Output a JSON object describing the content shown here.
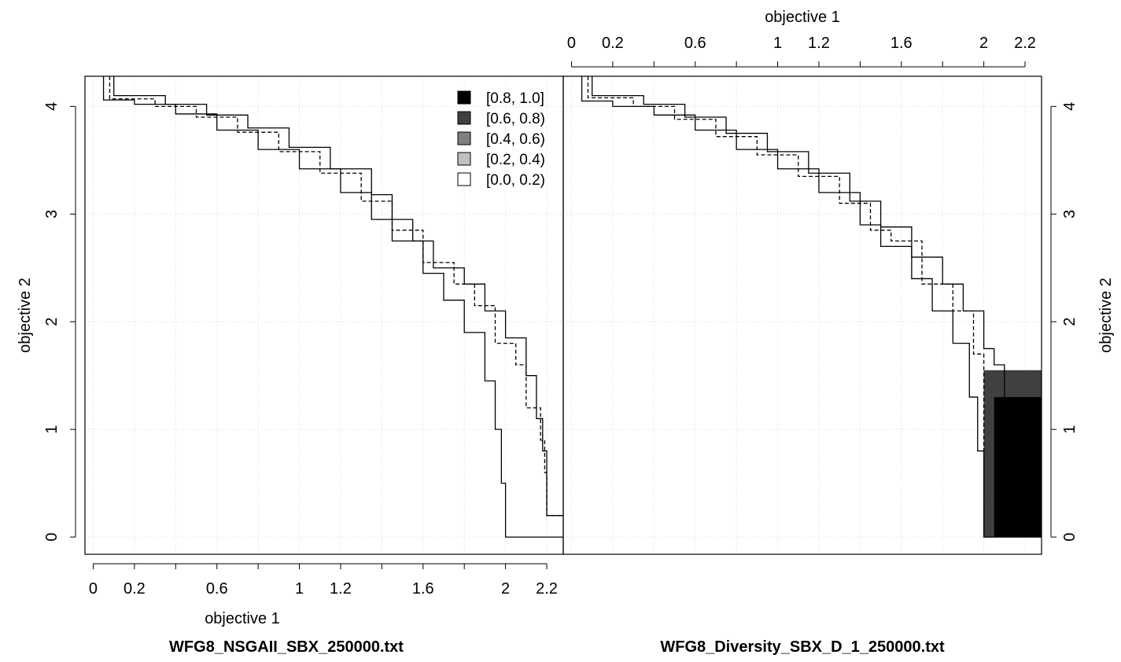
{
  "chart_data": [
    {
      "type": "line",
      "subtitle": "WFG8_NSGAII_SBX_250000.txt",
      "xlabel": "objective 1",
      "ylabel": "objective 2",
      "xlim": [
        -0.04,
        2.28
      ],
      "ylim": [
        -0.16,
        4.28
      ],
      "xticks": [
        0,
        0.2,
        0.4,
        0.6,
        0.8,
        1,
        1.2,
        1.4,
        1.6,
        1.8,
        2,
        2.2
      ],
      "xtick_labels": [
        "0",
        "0.2",
        "",
        "0.6",
        "",
        "1",
        "1.2",
        "",
        "1.6",
        "",
        "2",
        "2.2"
      ],
      "yticks": [
        0,
        1,
        2,
        3,
        4
      ],
      "ytick_labels": [
        "0",
        "1",
        "2",
        "3",
        "4"
      ],
      "grid": true,
      "legend": {
        "position": "top-right",
        "entries": [
          {
            "label": "[0.8, 1.0]",
            "color": "#000000"
          },
          {
            "label": "[0.6, 0.8)",
            "color": "#404040"
          },
          {
            "label": "[0.4, 0.6)",
            "color": "#808080"
          },
          {
            "label": "[0.2, 0.4)",
            "color": "#bfbfbf"
          },
          {
            "label": "[0.0, 0.2)",
            "color": "#ffffff"
          }
        ]
      },
      "series": [
        {
          "style": "solid",
          "points": [
            [
              0.05,
              4.28
            ],
            [
              0.05,
              4.06
            ],
            [
              0.2,
              4.02
            ],
            [
              0.4,
              3.93
            ],
            [
              0.6,
              3.78
            ],
            [
              0.8,
              3.6
            ],
            [
              1.0,
              3.42
            ],
            [
              1.2,
              3.2
            ],
            [
              1.35,
              2.95
            ],
            [
              1.45,
              2.75
            ],
            [
              1.6,
              2.45
            ],
            [
              1.7,
              2.2
            ],
            [
              1.8,
              1.9
            ],
            [
              1.9,
              1.45
            ],
            [
              1.95,
              1.0
            ],
            [
              1.98,
              0.5
            ],
            [
              2.0,
              0.1
            ],
            [
              2.0,
              0.0
            ],
            [
              2.28,
              0.0
            ]
          ]
        },
        {
          "style": "dashed",
          "points": [
            [
              0.08,
              4.28
            ],
            [
              0.08,
              4.07
            ],
            [
              0.3,
              4.0
            ],
            [
              0.5,
              3.9
            ],
            [
              0.7,
              3.76
            ],
            [
              0.9,
              3.58
            ],
            [
              1.1,
              3.38
            ],
            [
              1.3,
              3.12
            ],
            [
              1.45,
              2.85
            ],
            [
              1.6,
              2.55
            ],
            [
              1.75,
              2.35
            ],
            [
              1.85,
              2.15
            ],
            [
              1.95,
              1.8
            ],
            [
              2.05,
              1.6
            ],
            [
              2.1,
              1.2
            ],
            [
              2.17,
              0.9
            ],
            [
              2.19,
              0.6
            ],
            [
              2.2,
              0.2
            ],
            [
              2.28,
              0.2
            ]
          ]
        },
        {
          "style": "solid",
          "points": [
            [
              0.1,
              4.28
            ],
            [
              0.1,
              4.1
            ],
            [
              0.35,
              4.02
            ],
            [
              0.55,
              3.92
            ],
            [
              0.75,
              3.8
            ],
            [
              0.95,
              3.62
            ],
            [
              1.15,
              3.42
            ],
            [
              1.35,
              3.18
            ],
            [
              1.45,
              2.95
            ],
            [
              1.55,
              2.75
            ],
            [
              1.65,
              2.5
            ],
            [
              1.8,
              2.35
            ],
            [
              1.9,
              2.1
            ],
            [
              2.0,
              1.85
            ],
            [
              2.1,
              1.5
            ],
            [
              2.15,
              1.1
            ],
            [
              2.18,
              0.8
            ],
            [
              2.2,
              0.2
            ],
            [
              2.28,
              0.2
            ]
          ]
        }
      ]
    },
    {
      "type": "line",
      "subtitle": "WFG8_Diversity_SBX_D_1_250000.txt",
      "xlabel": "objective 1",
      "ylabel": "objective 2",
      "xlim": [
        -0.04,
        2.28
      ],
      "ylim": [
        -0.16,
        4.28
      ],
      "xticks": [
        0,
        0.2,
        0.4,
        0.6,
        0.8,
        1,
        1.2,
        1.4,
        1.6,
        1.8,
        2,
        2.2
      ],
      "xtick_labels": [
        "0",
        "0.2",
        "",
        "0.6",
        "",
        "1",
        "1.2",
        "",
        "1.6",
        "",
        "2",
        "2.2"
      ],
      "yticks": [
        0,
        1,
        2,
        3,
        4
      ],
      "ytick_labels": [
        "0",
        "1",
        "2",
        "3",
        "4"
      ],
      "grid": true,
      "series": [
        {
          "style": "solid",
          "points": [
            [
              0.05,
              4.28
            ],
            [
              0.05,
              4.05
            ],
            [
              0.2,
              4.0
            ],
            [
              0.4,
              3.92
            ],
            [
              0.6,
              3.78
            ],
            [
              0.8,
              3.6
            ],
            [
              1.0,
              3.42
            ],
            [
              1.2,
              3.2
            ],
            [
              1.4,
              2.9
            ],
            [
              1.5,
              2.7
            ],
            [
              1.65,
              2.4
            ],
            [
              1.75,
              2.1
            ],
            [
              1.85,
              1.8
            ],
            [
              1.93,
              1.3
            ],
            [
              1.97,
              0.8
            ],
            [
              2.0,
              0.3
            ],
            [
              2.0,
              0.0
            ],
            [
              2.28,
              0.0
            ]
          ]
        },
        {
          "style": "dashed",
          "points": [
            [
              0.08,
              4.28
            ],
            [
              0.08,
              4.08
            ],
            [
              0.3,
              4.0
            ],
            [
              0.5,
              3.88
            ],
            [
              0.7,
              3.72
            ],
            [
              0.9,
              3.55
            ],
            [
              1.1,
              3.35
            ],
            [
              1.3,
              3.1
            ],
            [
              1.45,
              2.85
            ],
            [
              1.55,
              2.75
            ],
            [
              1.7,
              2.35
            ],
            [
              1.85,
              2.1
            ],
            [
              1.95,
              1.7
            ],
            [
              2.0,
              1.5
            ],
            [
              2.0,
              0.0
            ]
          ]
        },
        {
          "style": "solid",
          "points": [
            [
              0.1,
              4.28
            ],
            [
              0.1,
              4.1
            ],
            [
              0.35,
              4.02
            ],
            [
              0.55,
              3.9
            ],
            [
              0.75,
              3.75
            ],
            [
              0.95,
              3.58
            ],
            [
              1.15,
              3.38
            ],
            [
              1.35,
              3.12
            ],
            [
              1.5,
              2.88
            ],
            [
              1.65,
              2.6
            ],
            [
              1.8,
              2.35
            ],
            [
              1.9,
              2.1
            ],
            [
              2.0,
              1.75
            ],
            [
              2.05,
              1.6
            ],
            [
              2.1,
              1.2
            ],
            [
              2.17,
              0.95
            ],
            [
              2.2,
              0.3
            ],
            [
              2.2,
              0.2
            ],
            [
              2.28,
              0.2
            ]
          ]
        }
      ],
      "filled_regions": [
        {
          "level": "[0.6, 0.8)",
          "color": "#404040",
          "x": [
            2.0,
            2.28
          ],
          "y": [
            0.0,
            1.55
          ]
        },
        {
          "level": "[0.8, 1.0]",
          "color": "#000000",
          "x": [
            2.05,
            2.28
          ],
          "y": [
            0.0,
            1.3
          ]
        }
      ]
    }
  ]
}
